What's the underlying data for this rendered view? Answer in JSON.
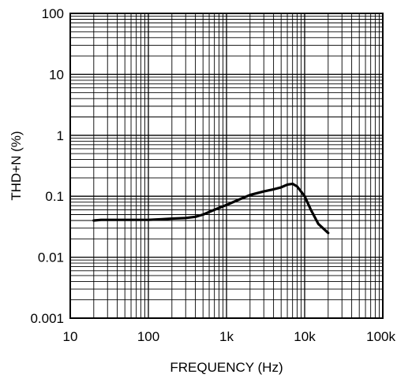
{
  "chart_data": {
    "type": "line",
    "xlabel": "FREQUENCY (Hz)",
    "ylabel": "THD+N (%)",
    "x_scale": "log",
    "y_scale": "log",
    "xlim": [
      10,
      100000
    ],
    "ylim": [
      0.001,
      100
    ],
    "grid": true,
    "x_ticks": [
      {
        "value": 10,
        "label": "10"
      },
      {
        "value": 100,
        "label": "100"
      },
      {
        "value": 1000,
        "label": "1k"
      },
      {
        "value": 10000,
        "label": "10k"
      },
      {
        "value": 100000,
        "label": "100k"
      }
    ],
    "y_ticks": [
      {
        "value": 0.001,
        "label": "0.001"
      },
      {
        "value": 0.01,
        "label": "0.01"
      },
      {
        "value": 0.1,
        "label": "0.1"
      },
      {
        "value": 1,
        "label": "1"
      },
      {
        "value": 10,
        "label": "10"
      },
      {
        "value": 100,
        "label": "100"
      }
    ],
    "series": [
      {
        "color": "#000000",
        "x": [
          20,
          25,
          30,
          40,
          50,
          70,
          100,
          150,
          200,
          300,
          400,
          500,
          700,
          1000,
          1500,
          2000,
          3000,
          4000,
          5000,
          6000,
          7000,
          8000,
          10000,
          12000,
          15000,
          20000
        ],
        "y": [
          0.04,
          0.041,
          0.041,
          0.041,
          0.041,
          0.041,
          0.041,
          0.042,
          0.043,
          0.044,
          0.046,
          0.05,
          0.06,
          0.072,
          0.09,
          0.105,
          0.12,
          0.13,
          0.14,
          0.155,
          0.16,
          0.145,
          0.1,
          0.06,
          0.035,
          0.025
        ]
      }
    ]
  }
}
